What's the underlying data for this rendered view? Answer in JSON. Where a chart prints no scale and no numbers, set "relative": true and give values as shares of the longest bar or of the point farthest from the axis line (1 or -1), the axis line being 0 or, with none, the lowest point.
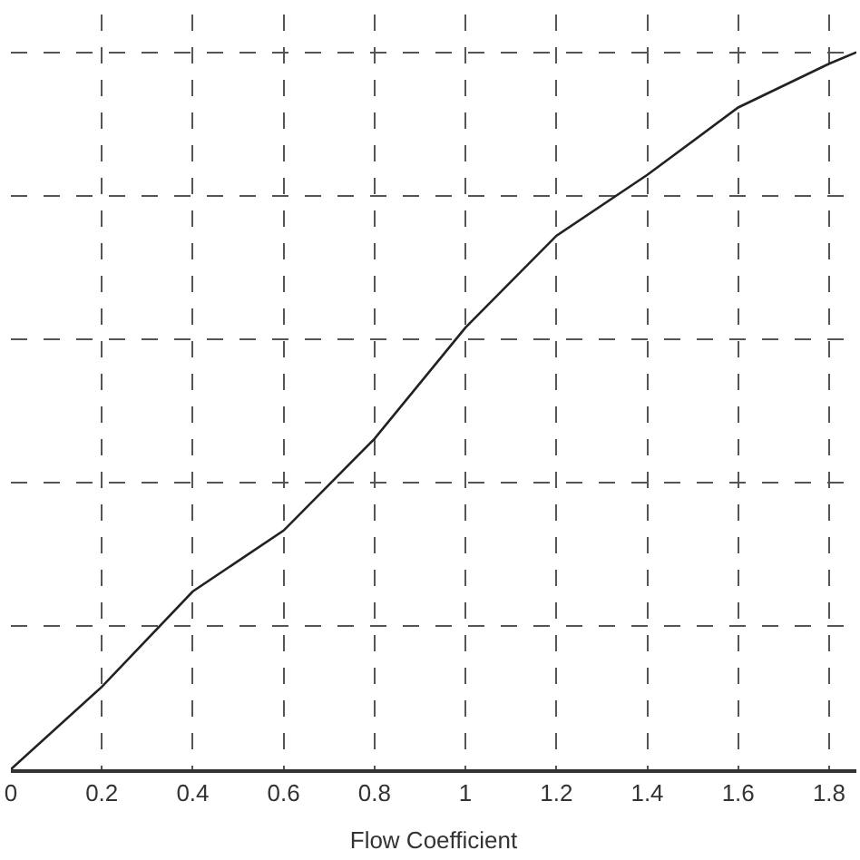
{
  "chart_data": {
    "type": "line",
    "xlabel": "Flow Coefficient",
    "relative": true,
    "x": [
      0,
      0.2,
      0.4,
      0.6,
      0.8,
      1.0,
      1.2,
      1.4,
      1.6,
      1.8,
      1.86
    ],
    "series": [
      {
        "color": "#222222",
        "values": [
          0,
          0.115,
          0.248,
          0.333,
          0.461,
          0.616,
          0.744,
          0.829,
          0.923,
          0.984,
          1
        ]
      }
    ],
    "xlim": [
      0,
      1.86
    ],
    "xticks": [
      0,
      0.2,
      0.4,
      0.6,
      0.8,
      1,
      1.2,
      1.4,
      1.6,
      1.8
    ],
    "grid": true,
    "marker": "none",
    "line_style": "solid"
  }
}
